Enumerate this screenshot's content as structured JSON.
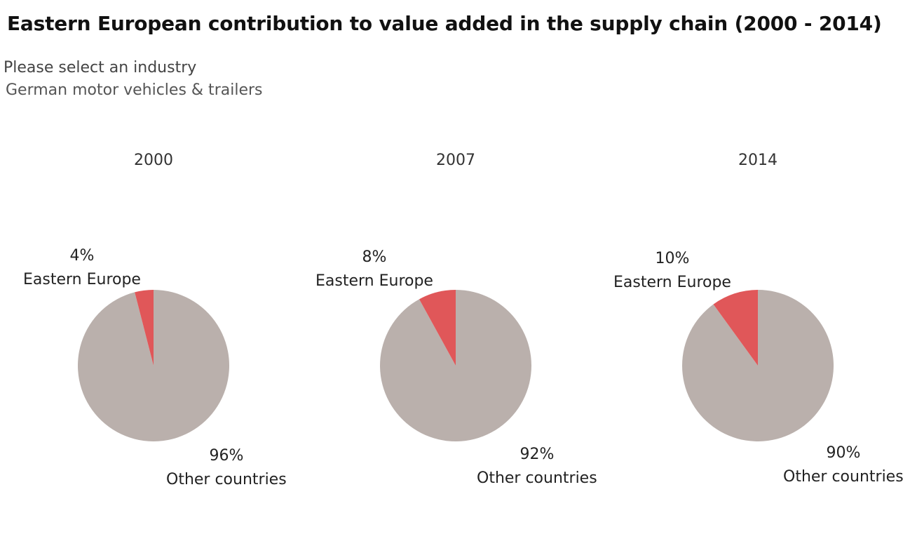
{
  "title": "Eastern European contribution to value added in the supply chain (2000 - 2014)",
  "filter": {
    "label": "Please select an industry",
    "selected": "German motor vehicles & trailers"
  },
  "colors": {
    "eastern_europe": "#e05759",
    "other_countries": "#bab0ac"
  },
  "chart_data": [
    {
      "type": "pie",
      "title": "2000",
      "slices": [
        {
          "label": "Eastern Europe",
          "value": 4,
          "value_label": "4%"
        },
        {
          "label": "Other countries",
          "value": 96,
          "value_label": "96%"
        }
      ]
    },
    {
      "type": "pie",
      "title": "2007",
      "slices": [
        {
          "label": "Eastern Europe",
          "value": 8,
          "value_label": "8%"
        },
        {
          "label": "Other countries",
          "value": 92,
          "value_label": "92%"
        }
      ]
    },
    {
      "type": "pie",
      "title": "2014",
      "slices": [
        {
          "label": "Eastern Europe",
          "value": 10,
          "value_label": "10%"
        },
        {
          "label": "Other countries",
          "value": 90,
          "value_label": "90%"
        }
      ]
    }
  ]
}
